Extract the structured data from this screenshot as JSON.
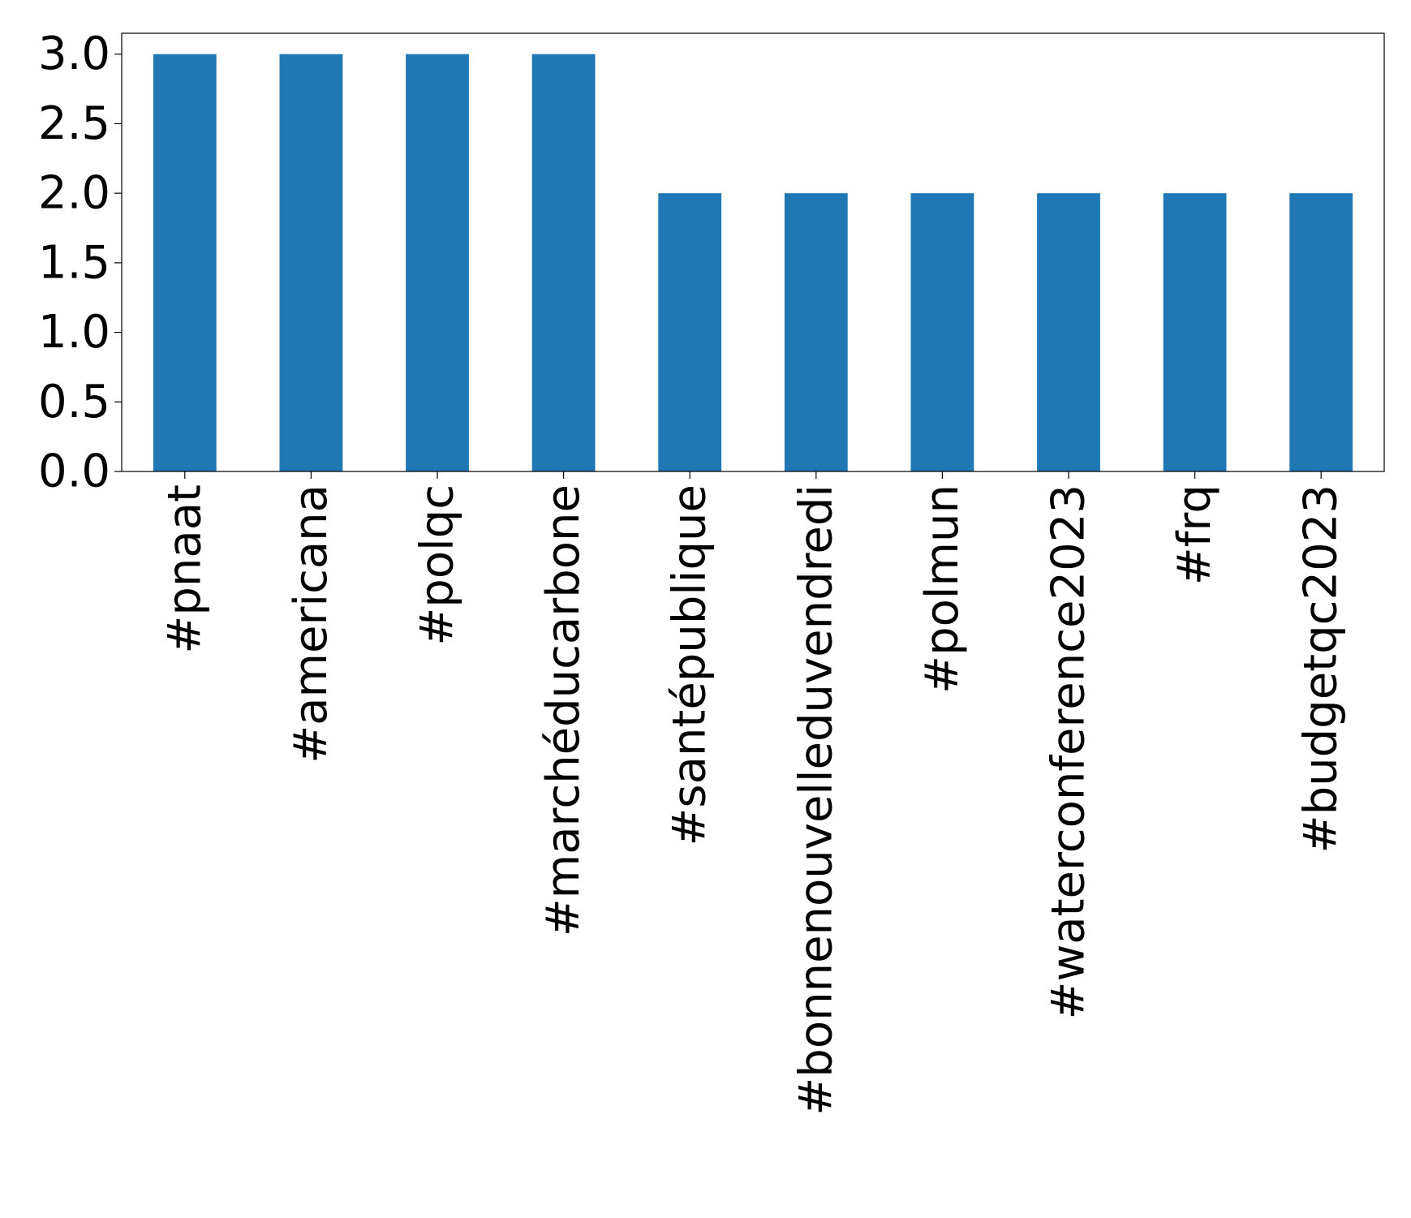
{
  "chart_data": {
    "type": "bar",
    "title": "",
    "xlabel": "",
    "ylabel": "",
    "categories": [
      "#pnaat",
      "#americana",
      "#polqc",
      "#marchéducarbone",
      "#santépublique",
      "#bonnenouvelleduvendredi",
      "#polmun",
      "#waterconference2023",
      "#frq",
      "#budgetqc2023"
    ],
    "values": [
      3,
      3,
      3,
      3,
      2,
      2,
      2,
      2,
      2,
      2
    ],
    "ylim": [
      0,
      3.15
    ],
    "yticks": [
      "0.0",
      "0.5",
      "1.0",
      "1.5",
      "2.0",
      "2.5",
      "3.0"
    ],
    "grid": false,
    "legend": "none",
    "colors": {
      "bar": "#1f77b4",
      "axis": "#000000"
    }
  }
}
